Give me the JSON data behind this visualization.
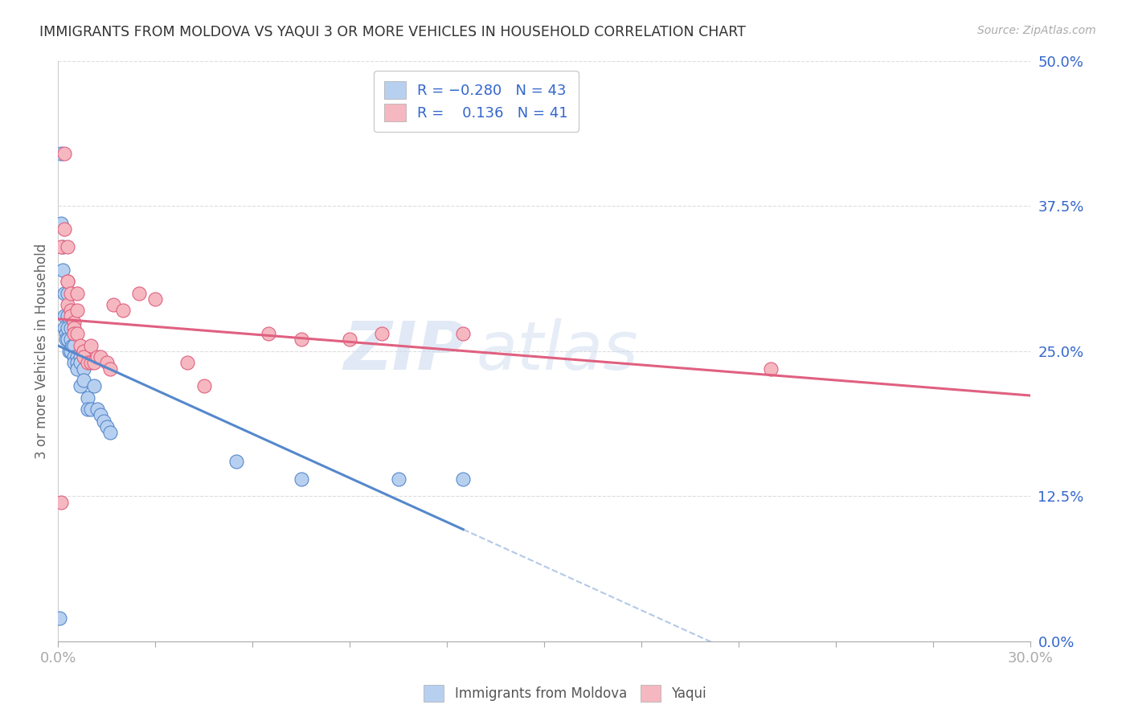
{
  "title": "IMMIGRANTS FROM MOLDOVA VS YAQUI 3 OR MORE VEHICLES IN HOUSEHOLD CORRELATION CHART",
  "source": "Source: ZipAtlas.com",
  "ylabel": "3 or more Vehicles in Household",
  "legend1_color": "#b8d0f0",
  "legend2_color": "#f5b8c0",
  "trendline1_color": "#5588cc",
  "trendline2_color": "#e06080",
  "watermark_zip": "ZIP",
  "watermark_atlas": "atlas",
  "background_color": "#ffffff",
  "scatter_blue_x": [
    0.0005,
    0.001,
    0.001,
    0.0015,
    0.0015,
    0.002,
    0.002,
    0.002,
    0.0025,
    0.0025,
    0.003,
    0.003,
    0.003,
    0.003,
    0.0035,
    0.004,
    0.004,
    0.004,
    0.0045,
    0.005,
    0.005,
    0.005,
    0.006,
    0.006,
    0.006,
    0.007,
    0.007,
    0.007,
    0.008,
    0.008,
    0.009,
    0.009,
    0.01,
    0.011,
    0.012,
    0.013,
    0.014,
    0.015,
    0.016,
    0.055,
    0.075,
    0.105,
    0.125
  ],
  "scatter_blue_y": [
    0.02,
    0.42,
    0.36,
    0.34,
    0.32,
    0.3,
    0.28,
    0.27,
    0.265,
    0.26,
    0.3,
    0.28,
    0.27,
    0.26,
    0.25,
    0.27,
    0.26,
    0.25,
    0.255,
    0.255,
    0.245,
    0.24,
    0.245,
    0.24,
    0.235,
    0.245,
    0.24,
    0.22,
    0.235,
    0.225,
    0.21,
    0.2,
    0.2,
    0.22,
    0.2,
    0.195,
    0.19,
    0.185,
    0.18,
    0.155,
    0.14,
    0.14,
    0.14
  ],
  "scatter_pink_x": [
    0.001,
    0.001,
    0.002,
    0.002,
    0.003,
    0.003,
    0.003,
    0.003,
    0.004,
    0.004,
    0.004,
    0.005,
    0.005,
    0.005,
    0.006,
    0.006,
    0.006,
    0.007,
    0.008,
    0.008,
    0.009,
    0.01,
    0.01,
    0.011,
    0.012,
    0.013,
    0.015,
    0.016,
    0.017,
    0.02,
    0.025,
    0.03,
    0.04,
    0.045,
    0.065,
    0.075,
    0.09,
    0.1,
    0.125,
    0.22
  ],
  "scatter_pink_y": [
    0.12,
    0.34,
    0.42,
    0.355,
    0.34,
    0.31,
    0.31,
    0.29,
    0.3,
    0.285,
    0.28,
    0.275,
    0.27,
    0.265,
    0.3,
    0.285,
    0.265,
    0.255,
    0.25,
    0.245,
    0.24,
    0.255,
    0.24,
    0.24,
    0.245,
    0.245,
    0.24,
    0.235,
    0.29,
    0.285,
    0.3,
    0.295,
    0.24,
    0.22,
    0.265,
    0.26,
    0.26,
    0.265,
    0.265,
    0.235
  ],
  "xlim": [
    0.0,
    0.3
  ],
  "ylim": [
    0.0,
    0.5
  ],
  "x_tick_positions": [
    0.0,
    0.03,
    0.06,
    0.09,
    0.12,
    0.15,
    0.18,
    0.21,
    0.24,
    0.27,
    0.3
  ],
  "y_ticks": [
    0.0,
    0.125,
    0.25,
    0.375,
    0.5
  ],
  "grid_color": "#dddddd",
  "grid_style": "--"
}
